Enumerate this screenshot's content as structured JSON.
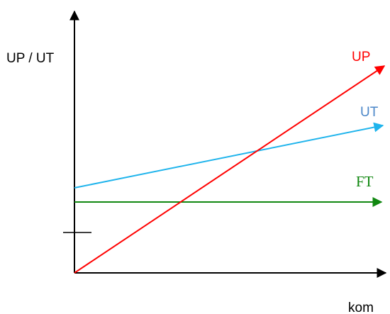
{
  "diagram": {
    "y_axis_label": "UP / UT",
    "x_axis_label": "kom",
    "lines": [
      {
        "key": "up",
        "label": "UP",
        "color": "#ff0000"
      },
      {
        "key": "ut",
        "label": "UT",
        "color": "#1fb4ec"
      },
      {
        "key": "ft",
        "label": "FT",
        "color": "#118811"
      }
    ],
    "axis_color": "#000000"
  }
}
